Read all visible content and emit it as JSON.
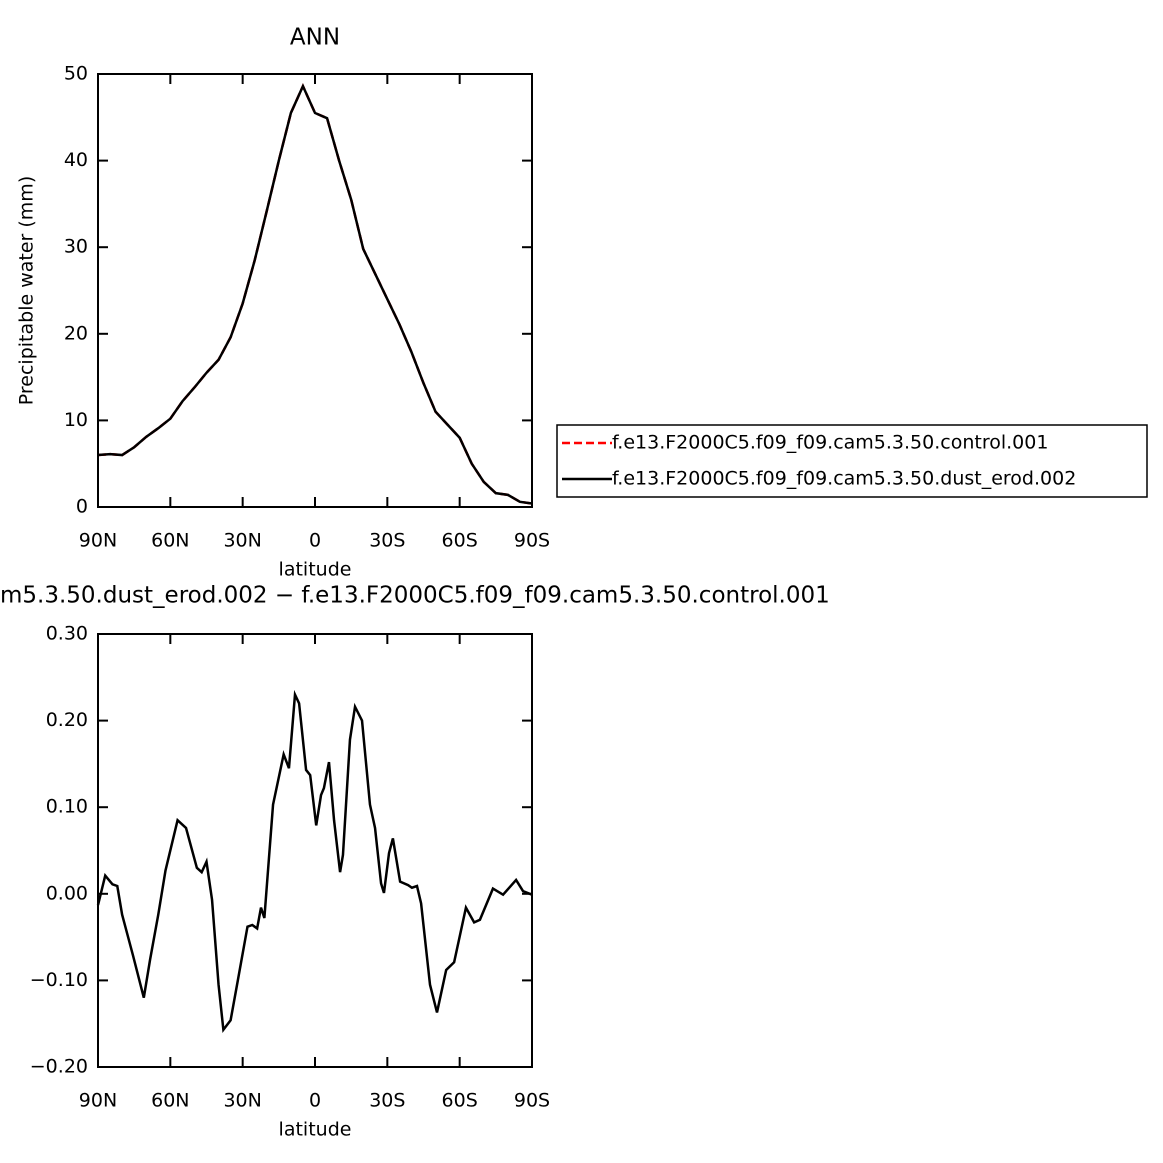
{
  "chart_data": [
    {
      "type": "line",
      "title": "ANN",
      "xlabel": "latitude",
      "ylabel": "Precipitable water (mm)",
      "x": [
        90,
        85,
        80,
        75,
        70,
        65,
        60,
        55,
        50,
        45,
        40,
        35,
        30,
        25,
        20,
        15,
        10,
        5,
        0,
        -5,
        -10,
        -15,
        -20,
        -25,
        -30,
        -35,
        -40,
        -45,
        -50,
        -55,
        -60,
        -65,
        -70,
        -75,
        -80,
        -85,
        -90
      ],
      "series": [
        {
          "name": "f.e13.F2000C5.f09_f09.cam5.3.50.control.001",
          "color": "#ff0000",
          "dashed": true,
          "values": [
            6.0,
            6.1,
            6.0,
            6.9,
            8.1,
            9.1,
            10.2,
            12.2,
            13.8,
            15.5,
            17.0,
            19.6,
            23.5,
            28.5,
            34.2,
            40.0,
            45.5,
            48.6,
            45.5,
            44.9,
            40.0,
            35.5,
            29.8,
            26.9,
            24.0,
            21.1,
            17.9,
            14.3,
            11.0,
            9.5,
            8.0,
            5.0,
            2.9,
            1.6,
            1.4,
            0.6,
            0.4
          ]
        },
        {
          "name": "f.e13.F2000C5.f09_f09.cam5.3.50.dust_erod.002",
          "color": "#000000",
          "dashed": false,
          "values": [
            6.0,
            6.1,
            6.0,
            6.9,
            8.1,
            9.1,
            10.2,
            12.2,
            13.8,
            15.5,
            17.0,
            19.6,
            23.5,
            28.5,
            34.2,
            40.0,
            45.5,
            48.6,
            45.5,
            44.9,
            40.0,
            35.5,
            29.8,
            26.9,
            24.0,
            21.1,
            17.9,
            14.3,
            11.0,
            9.5,
            8.0,
            5.0,
            2.9,
            1.6,
            1.4,
            0.6,
            0.4
          ]
        }
      ],
      "xlim": [
        90,
        -90
      ],
      "xticks": [
        {
          "value": 90,
          "label": "90N"
        },
        {
          "value": 60,
          "label": "60N"
        },
        {
          "value": 30,
          "label": "30N"
        },
        0,
        {
          "value": -30,
          "label": "30S"
        },
        {
          "value": -60,
          "label": "60S"
        },
        {
          "value": -90,
          "label": "90S"
        }
      ],
      "ylim": [
        0,
        50
      ],
      "yticks": [
        0,
        10,
        20,
        30,
        40,
        50
      ],
      "legend": "outside-right"
    },
    {
      "type": "line",
      "title": "m5.3.50.dust_erod.002 − f.e13.F2000C5.f09_f09.cam5.3.50.control.001",
      "xlabel": "latitude",
      "x": [
        90,
        87,
        84,
        82,
        80,
        75.5,
        71,
        68.4,
        65,
        62,
        57,
        53.5,
        49,
        47,
        45,
        42.7,
        40,
        38,
        35,
        32,
        28,
        26,
        24,
        22.4,
        21,
        17.4,
        13,
        10.8,
        8.3,
        6.6,
        3.7,
        2,
        -0.5,
        -2.5,
        -3.7,
        -5.8,
        -7.9,
        -10.4,
        -11.6,
        -14.5,
        -16.6,
        -19.5,
        -22.8,
        -24.9,
        -27.4,
        -28.6,
        -30.7,
        -32.3,
        -35.3,
        -38.6,
        -40.2,
        -42.3,
        -44,
        -47.7,
        -50.6,
        -54.4,
        -57.7,
        -62.6,
        -66,
        -68.4,
        -73.8,
        -78,
        -83.4,
        -86.3,
        -90
      ],
      "series": [
        {
          "color": "#000000",
          "values": [
            -0.013,
            0.021,
            0.011,
            0.009,
            -0.024,
            -0.071,
            -0.12,
            -0.076,
            -0.024,
            0.027,
            0.085,
            0.076,
            0.03,
            0.025,
            0.037,
            -0.007,
            -0.105,
            -0.157,
            -0.146,
            -0.1,
            -0.038,
            -0.036,
            -0.04,
            -0.016,
            -0.028,
            0.103,
            0.161,
            0.145,
            0.23,
            0.22,
            0.143,
            0.137,
            0.079,
            0.114,
            0.122,
            0.152,
            0.085,
            0.025,
            0.045,
            0.178,
            0.216,
            0.2,
            0.103,
            0.076,
            0.012,
            0.001,
            0.047,
            0.064,
            0.014,
            0.01,
            0.007,
            0.009,
            -0.011,
            -0.105,
            -0.137,
            -0.088,
            -0.079,
            -0.016,
            -0.033,
            -0.03,
            0.006,
            -0.001,
            0.016,
            0.003,
            -0.001
          ]
        }
      ],
      "xlim": [
        90,
        -90
      ],
      "xticks": [
        {
          "value": 90,
          "label": "90N"
        },
        {
          "value": 60,
          "label": "60N"
        },
        {
          "value": 30,
          "label": "30N"
        },
        0,
        {
          "value": -30,
          "label": "30S"
        },
        {
          "value": -60,
          "label": "60S"
        },
        {
          "value": -90,
          "label": "90S"
        }
      ],
      "ylim": [
        -0.2,
        0.3
      ],
      "yticks": [
        {
          "value": -0.2,
          "label": "−0.20"
        },
        {
          "value": -0.1,
          "label": "−0.10"
        },
        {
          "value": 0,
          "label": "0.00"
        },
        {
          "value": 0.1,
          "label": "0.10"
        },
        {
          "value": 0.2,
          "label": "0.20"
        },
        {
          "value": 0.3,
          "label": "0.30"
        }
      ]
    }
  ]
}
